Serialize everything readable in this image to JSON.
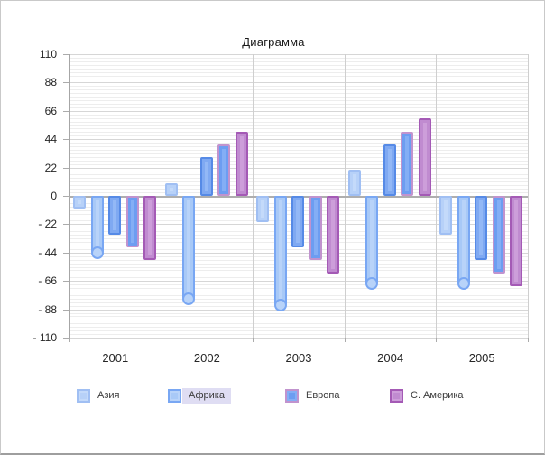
{
  "window": {
    "background": "#ffffff",
    "frame_border": "#c9c9c9"
  },
  "chart_data": {
    "type": "bar",
    "title": "Диаграмма",
    "categories": [
      "2001",
      "2002",
      "2003",
      "2004",
      "2005"
    ],
    "series": [
      {
        "name": "Азия",
        "key": "asia",
        "values": [
          -10,
          10,
          -20,
          20,
          -30
        ],
        "fill": "#b7d1f8",
        "inner": "#c4dafa",
        "border": "#a0bff3",
        "in_legend": true,
        "endpoint_marker": "none"
      },
      {
        "name": "Африка",
        "key": "africa",
        "values": [
          -44,
          -80,
          -85,
          -68,
          -68
        ],
        "fill": "#a8c9f7",
        "inner": "#b8d3f9",
        "border": "#79a7f3",
        "in_legend": true,
        "endpoint_marker": "circle",
        "selected": true
      },
      {
        "name": "",
        "key": "series-3",
        "values": [
          -30,
          30,
          -40,
          40,
          -50
        ],
        "fill": "#7fa9f2",
        "inner": "#93b8f6",
        "border": "#568ae6",
        "in_legend": false,
        "endpoint_marker": "none"
      },
      {
        "name": "Европа",
        "key": "europe",
        "values": [
          -40,
          40,
          -50,
          50,
          -60
        ],
        "fill": "#6d9df1",
        "inner": "#84aef5",
        "border": "#c193ce",
        "in_legend": true,
        "endpoint_marker": "none"
      },
      {
        "name": "С. Америка",
        "key": "n-america",
        "values": [
          -50,
          50,
          -60,
          60,
          -70
        ],
        "fill": "#c08bd0",
        "inner": "#cd9eda",
        "border": "#a45ab5",
        "in_legend": true,
        "endpoint_marker": "none"
      }
    ],
    "y_axis": {
      "min": -110,
      "max": 110,
      "major_step": 22,
      "minor_per_major": 8,
      "tick_labels": [
        "110",
        "88",
        "66",
        "44",
        "22",
        "0",
        "- 22",
        "- 44",
        "- 66",
        "- 88",
        "- 110"
      ]
    },
    "x_axis": {
      "tick_labels": [
        "2001",
        "2002",
        "2003",
        "2004",
        "2005"
      ]
    },
    "legend": {
      "position": "bottom",
      "selected_item": "Африка",
      "selected_highlight_color": "#dfddf3"
    },
    "grid": {
      "minor_color": "#ededed",
      "major_color": "#d6d6d6",
      "zero_color": "#aeaeae",
      "vertical_color": "#cfcfcf",
      "axis_color": "#a6a6a6"
    }
  }
}
